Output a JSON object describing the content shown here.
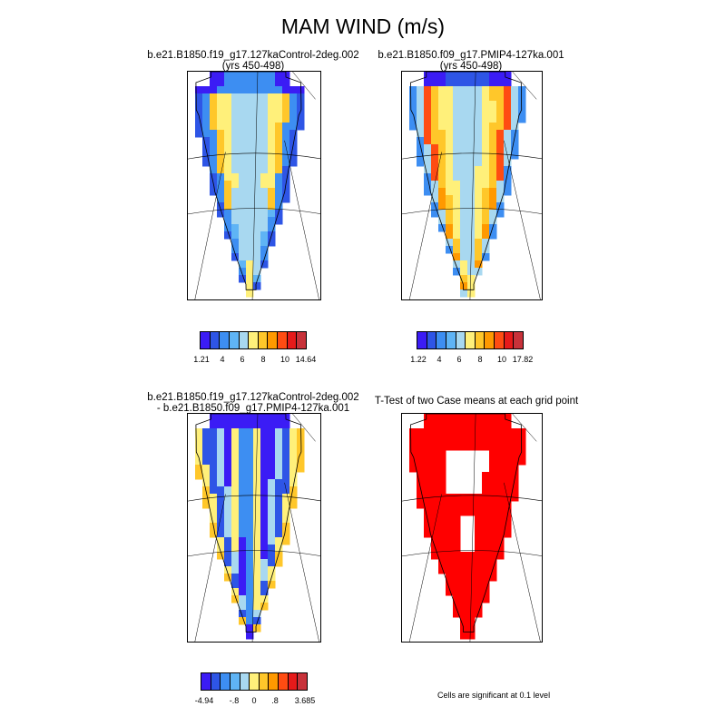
{
  "title": "MAM WIND (m/s)",
  "colors": {
    "ramp": [
      "#3b1cf5",
      "#2e55e6",
      "#3d8ef2",
      "#5fb4f5",
      "#a8d8f0",
      "#fff07a",
      "#ffc72a",
      "#ff9900",
      "#ff4c12",
      "#e61a1a",
      "#c8323a"
    ],
    "ttest_fill": "#ff0000",
    "coast_line": "#000000"
  },
  "panels": {
    "control": {
      "title_line1": "b.e21.B1850.f19_g17.127kaControl-2deg.002",
      "title_line2": "(yrs 450-498)",
      "colorbar_labels": [
        "1.21",
        "4",
        "6",
        "8",
        "10",
        "14.64"
      ]
    },
    "pmip4": {
      "title_line1": "b.e21.B1850.f09_g17.PMIP4-127ka.001",
      "title_line2": "(yrs 450-498)",
      "colorbar_labels": [
        "1.22",
        "4",
        "6",
        "8",
        "10",
        "17.82"
      ]
    },
    "difference": {
      "title_line1": "b.e21.B1850.f19_g17.127kaControl-2deg.002",
      "title_line2": "- b.e21.B1850.f09_g17.PMIP4-127ka.001",
      "colorbar_labels": [
        "-4.94",
        "-.8",
        "0",
        ".8",
        "3.685"
      ]
    },
    "ttest": {
      "title_line1": "T-Test of two Case means at each grid point",
      "footnote": "Cells are significant at 0.1 level"
    }
  }
}
